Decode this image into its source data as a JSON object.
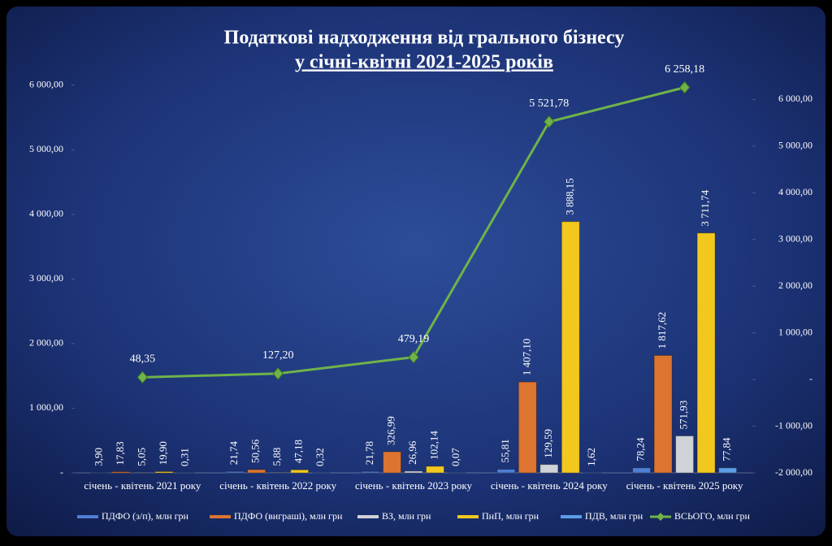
{
  "chart_data": {
    "type": "bar_line",
    "title": "Податкові надходження від грального бізнесу",
    "subtitle": "у січні-квітні 2021-2025 років",
    "categories": [
      "січень - квітень 2021 року",
      "січень - квітень 2022 року",
      "січень - квітень 2023 року",
      "січень - квітень 2024 року",
      "січень - квітень 2025 року"
    ],
    "ylim": [
      0,
      6500
    ],
    "yticks": [
      {
        "value": 0,
        "label": "-"
      },
      {
        "value": 1000,
        "label": "1 000,00"
      },
      {
        "value": 2000,
        "label": "2 000,00"
      },
      {
        "value": 3000,
        "label": "3 000,00"
      },
      {
        "value": 4000,
        "label": "4 000,00"
      },
      {
        "value": 5000,
        "label": "5 000,00"
      },
      {
        "value": 6000,
        "label": "6 000,00"
      }
    ],
    "y2lim": [
      -2000,
      7000
    ],
    "y2ticks": [
      {
        "value": -2000,
        "label": "-2 000,00"
      },
      {
        "value": -1000,
        "label": "-1 000,00"
      },
      {
        "value": 0,
        "label": "-"
      },
      {
        "value": 1000,
        "label": "1 000,00"
      },
      {
        "value": 2000,
        "label": "2 000,00"
      },
      {
        "value": 3000,
        "label": "3 000,00"
      },
      {
        "value": 4000,
        "label": "4 000,00"
      },
      {
        "value": 5000,
        "label": "5 000,00"
      },
      {
        "value": 6000,
        "label": "6 000,00"
      }
    ],
    "legend": "bottom",
    "series": [
      {
        "name": "ПДФО (з/п), млн грн",
        "type": "bar",
        "color": "#4f7fd6",
        "values": [
          3.9,
          21.74,
          21.78,
          55.81,
          78.24
        ],
        "value_labels": [
          "3,90",
          "21,74",
          "21,78",
          "55,81",
          "78,24"
        ]
      },
      {
        "name": "ПДФО (виграші), млн грн",
        "type": "bar",
        "color": "#dd7530",
        "values": [
          17.83,
          50.56,
          326.99,
          1407.1,
          1817.62
        ],
        "value_labels": [
          "17,83",
          "50,56",
          "326,99",
          "1 407,10",
          "1 817,62"
        ]
      },
      {
        "name": "ВЗ, млн грн",
        "type": "bar",
        "color": "#cfd2d6",
        "values": [
          5.05,
          5.88,
          26.96,
          129.59,
          571.93
        ],
        "value_labels": [
          "5,05",
          "5,88",
          "26,96",
          "129,59",
          "571,93"
        ]
      },
      {
        "name": "ПнП, млн грн",
        "type": "bar",
        "color": "#f2c81f",
        "values": [
          19.9,
          47.18,
          102.14,
          3888.15,
          3711.74
        ],
        "value_labels": [
          "19,90",
          "47,18",
          "102,14",
          "3 888,15",
          "3 711,74"
        ]
      },
      {
        "name": "ПДВ, млн грн",
        "type": "bar",
        "color": "#5b9de6",
        "values": [
          0.31,
          0.32,
          0.07,
          1.62,
          77.84
        ],
        "value_labels": [
          "0,31",
          "0,32",
          "0,07",
          "1,62",
          "77,84"
        ]
      },
      {
        "name": "ВСЬОГО, млн грн",
        "type": "line",
        "axis": "y2",
        "color": "#6fb34a",
        "values": [
          48.35,
          127.2,
          479.19,
          5521.78,
          6258.18
        ],
        "value_labels": [
          "48,35",
          "127,20",
          "479,19",
          "5 521,78",
          "6 258,18"
        ]
      }
    ]
  }
}
